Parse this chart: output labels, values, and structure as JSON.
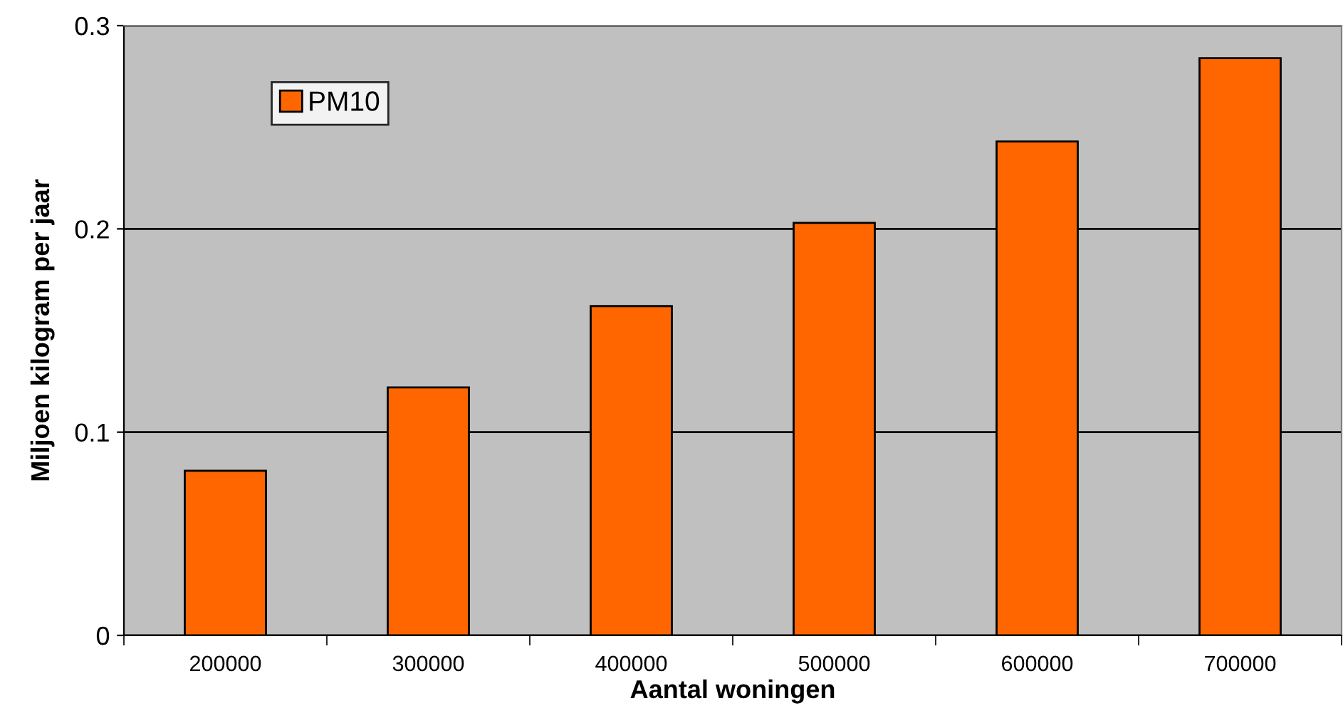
{
  "chart_data": {
    "type": "bar",
    "xlabel": "Aantal woningen",
    "ylabel": "Miljoen kilogram per jaar",
    "categories": [
      "200000",
      "300000",
      "400000",
      "500000",
      "600000",
      "700000"
    ],
    "series": [
      {
        "name": "PM10",
        "color": "#ff6600",
        "values": [
          0.081,
          0.122,
          0.162,
          0.203,
          0.243,
          0.284
        ]
      }
    ],
    "ylim": [
      0,
      0.3
    ],
    "yticks": [
      0,
      0.1,
      0.2,
      0.3
    ],
    "grid": "y",
    "legend": "top left"
  }
}
